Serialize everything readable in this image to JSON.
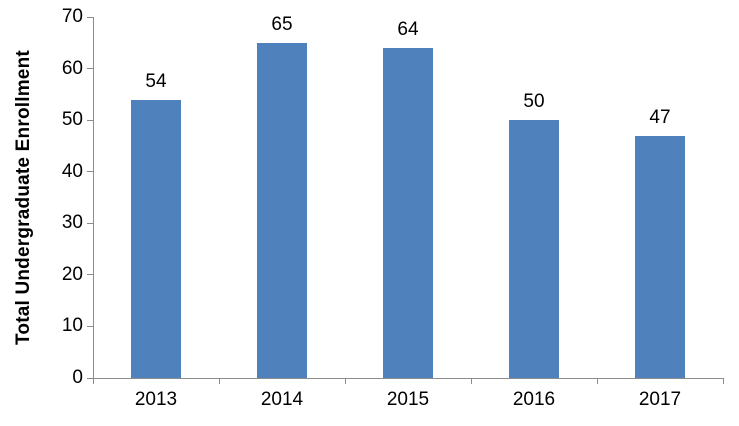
{
  "chart_data": {
    "type": "bar",
    "title": "",
    "categories": [
      "2013",
      "2014",
      "2015",
      "2016",
      "2017"
    ],
    "values": [
      54,
      65,
      64,
      50,
      47
    ],
    "data_labels": [
      "54",
      "65",
      "64",
      "50",
      "47"
    ],
    "xlabel": "",
    "ylabel": "Total Undergraduate Enrollment",
    "ylim": [
      0,
      70
    ],
    "yticks": [
      "0",
      "10",
      "20",
      "30",
      "40",
      "50",
      "60",
      "70"
    ],
    "grid": false,
    "legend": false,
    "bar_color": "#4F81BD",
    "axis_color": "#8C8C8C",
    "text_color": "#000000"
  }
}
